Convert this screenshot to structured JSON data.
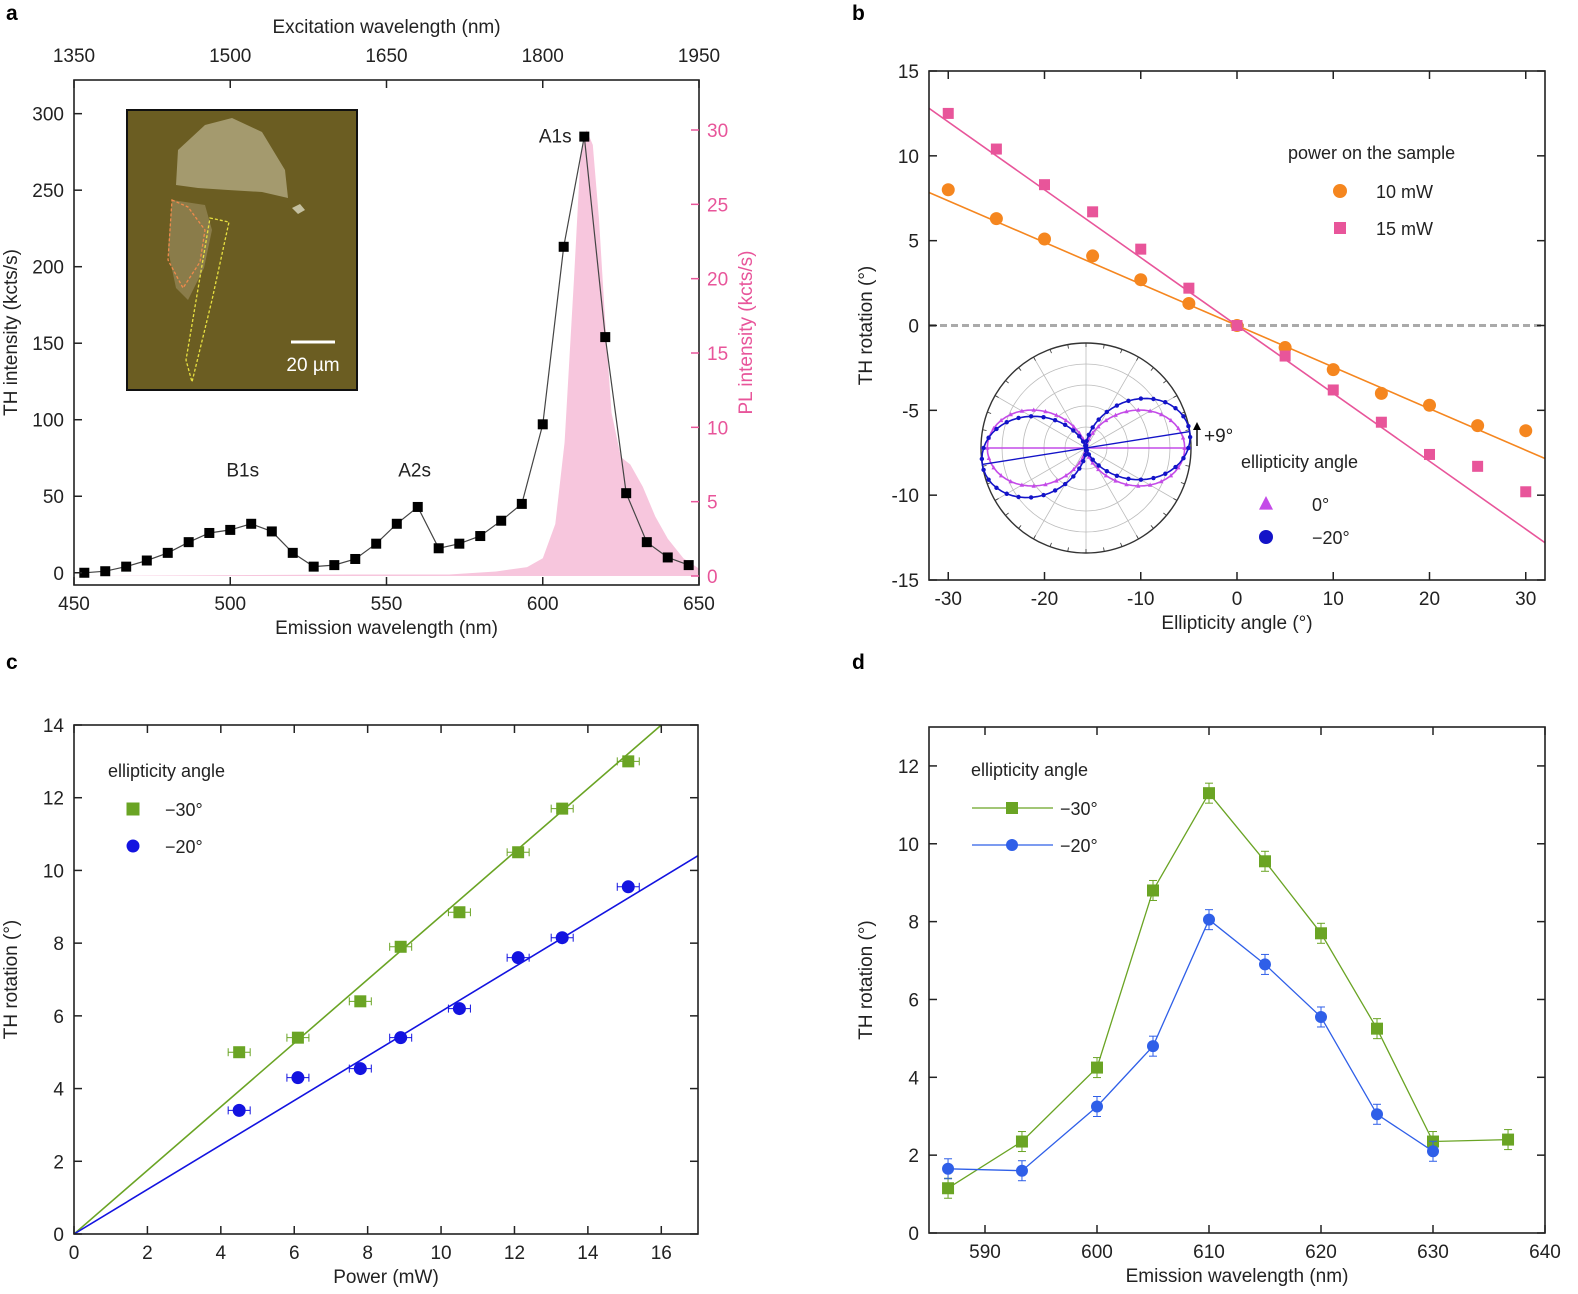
{
  "chart_data": [
    {
      "panel": "a",
      "type": "line",
      "xlabel": "Emission wavelength (nm)",
      "x2label": "Excitation wavelength (nm)",
      "ylabel": "TH intensity (kcts/s)",
      "y2label": "PL intensity (kcts/s)",
      "xlim": [
        450,
        650
      ],
      "x2lim": [
        1350,
        1950
      ],
      "ylim": [
        -8,
        322
      ],
      "y2lim": [
        0,
        30
      ],
      "xticks": [
        450,
        500,
        550,
        600,
        650
      ],
      "x2ticks": [
        1350,
        1500,
        1650,
        1800,
        1950
      ],
      "yticks": [
        0,
        50,
        100,
        150,
        200,
        250,
        300
      ],
      "y2ticks": [
        0,
        5,
        10,
        15,
        20,
        25,
        30
      ],
      "annotations": [
        {
          "text": "B1s",
          "x": 504,
          "y": 63
        },
        {
          "text": "A2s",
          "x": 559,
          "y": 63
        },
        {
          "text": "A1s",
          "x": 604,
          "y": 281
        }
      ],
      "inset_scalebar_label": "20 µm",
      "series": [
        {
          "kind": "TH",
          "color": "#000000",
          "x": [
            453.3,
            460,
            466.7,
            473.3,
            480,
            486.7,
            493.3,
            500,
            506.7,
            513.3,
            520,
            526.7,
            533.3,
            540,
            546.7,
            553.3,
            560,
            566.7,
            573.3,
            580,
            586.7,
            593.3,
            600,
            606.7,
            613.3,
            620,
            626.7,
            633.3,
            640,
            646.7
          ],
          "y": [
            0,
            1,
            4,
            8,
            13,
            20,
            26,
            28,
            32,
            27,
            13,
            4,
            5,
            9,
            19,
            32,
            43,
            16,
            19,
            24,
            34,
            45,
            97,
            213,
            285,
            154,
            52,
            20,
            10,
            5
          ]
        },
        {
          "kind": "PL",
          "color": "#f7c6dd",
          "x": [
            450,
            540,
            570,
            585,
            595,
            600,
            604,
            607,
            610,
            612,
            614,
            616,
            618,
            620,
            622,
            625,
            628,
            632,
            636,
            640,
            645,
            650
          ],
          "y": [
            0,
            0.1,
            0.1,
            0.3,
            0.6,
            1.2,
            3.5,
            9,
            20,
            28,
            30,
            29,
            24,
            17,
            11,
            8,
            7.5,
            6,
            4,
            2.5,
            1.2,
            0.5
          ]
        }
      ]
    },
    {
      "panel": "b",
      "type": "scatter",
      "xlabel": "Ellipticity angle (°)",
      "ylabel": "TH rotation (°)",
      "xlim": [
        -32,
        32
      ],
      "ylim": [
        -15,
        15
      ],
      "xticks": [
        -30,
        -20,
        -10,
        0,
        10,
        20,
        30
      ],
      "yticks": [
        -15,
        -10,
        -5,
        0,
        5,
        10,
        15
      ],
      "legend_title": "power on the sample",
      "series": [
        {
          "name": "10 mW",
          "marker": "circle",
          "color": "#f5861f",
          "x": [
            -30,
            -25,
            -20,
            -15,
            -10,
            -5,
            0,
            5,
            10,
            15,
            20,
            25,
            30
          ],
          "y": [
            8.0,
            6.3,
            5.1,
            4.1,
            2.7,
            1.3,
            0,
            -1.3,
            -2.6,
            -4.0,
            -4.7,
            -5.9,
            -6.2
          ],
          "fit_slope": -0.245
        },
        {
          "name": "15 mW",
          "marker": "square",
          "color": "#e8559a",
          "x": [
            -30,
            -25,
            -20,
            -15,
            -10,
            -5,
            0,
            5,
            10,
            15,
            20,
            25,
            30
          ],
          "y": [
            12.5,
            10.4,
            8.3,
            6.7,
            4.5,
            2.2,
            0,
            -1.8,
            -3.8,
            -5.7,
            -7.6,
            -8.3,
            -9.8
          ],
          "fit_slope": -0.4
        }
      ],
      "inset": {
        "type": "polar",
        "legend_title": "ellipticity angle",
        "rotation_label": "+9°",
        "series": [
          {
            "name": "0°",
            "marker": "triangle",
            "color": "#c44be8",
            "rotation_deg": 0
          },
          {
            "name": "−20°",
            "marker": "circle",
            "color": "#1313c8",
            "rotation_deg": 9
          }
        ]
      }
    },
    {
      "panel": "c",
      "type": "scatter",
      "xlabel": "Power (mW)",
      "ylabel": "TH rotation (°)",
      "xlim": [
        0,
        17
      ],
      "ylim": [
        0,
        14
      ],
      "xticks": [
        0,
        2,
        4,
        6,
        8,
        10,
        12,
        14,
        16
      ],
      "yticks": [
        0,
        2,
        4,
        6,
        8,
        10,
        12,
        14
      ],
      "legend_title": "ellipticity angle",
      "series": [
        {
          "name": "−30°",
          "marker": "square",
          "color": "#6aa424",
          "x": [
            4.5,
            6.1,
            7.8,
            8.9,
            10.5,
            12.1,
            13.3,
            15.1
          ],
          "y": [
            5.0,
            5.4,
            6.4,
            7.9,
            8.85,
            10.5,
            11.7,
            13.0
          ],
          "fit_slope": 0.875
        },
        {
          "name": "−20°",
          "marker": "circle",
          "color": "#1313e0",
          "x": [
            4.5,
            6.1,
            7.8,
            8.9,
            10.5,
            12.1,
            13.3,
            15.1
          ],
          "y": [
            3.4,
            4.3,
            4.55,
            5.4,
            6.2,
            7.6,
            8.15,
            9.55
          ],
          "fit_slope": 0.612
        }
      ]
    },
    {
      "panel": "d",
      "type": "line",
      "xlabel": "Emission wavelength (nm)",
      "ylabel": "TH rotation (°)",
      "xlim": [
        585,
        640
      ],
      "ylim": [
        0,
        13
      ],
      "xticks": [
        590,
        600,
        610,
        620,
        630,
        640
      ],
      "yticks": [
        0,
        2,
        4,
        6,
        8,
        10,
        12
      ],
      "legend_title": "ellipticity angle",
      "series": [
        {
          "name": "−30°",
          "marker": "square",
          "color": "#6aa424",
          "x": [
            586.7,
            593.3,
            600,
            605,
            610,
            615,
            620,
            625,
            630,
            636.7
          ],
          "y": [
            1.15,
            2.35,
            4.25,
            8.8,
            11.3,
            9.55,
            7.7,
            5.25,
            2.35,
            2.4
          ]
        },
        {
          "name": "−20°",
          "marker": "circle",
          "color": "#2f5fe8",
          "x": [
            586.7,
            593.3,
            600,
            605,
            610,
            615,
            620,
            625,
            630
          ],
          "y": [
            1.65,
            1.6,
            3.25,
            4.8,
            8.05,
            6.9,
            5.55,
            3.05,
            2.1
          ]
        }
      ]
    }
  ]
}
